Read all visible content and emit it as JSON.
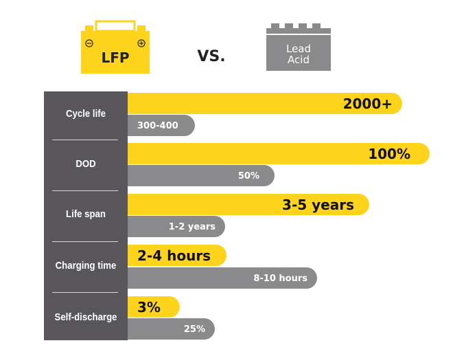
{
  "header": {
    "lfp_label": "LFP",
    "vs": "VS.",
    "lead_acid_label": [
      "Lead",
      "Acid"
    ]
  },
  "rows": [
    {
      "label": "Cycle life",
      "lfp": "2000+",
      "lead_acid": "300-400"
    },
    {
      "label": "DOD",
      "lfp": "100%",
      "lead_acid": "50%"
    },
    {
      "label": "Life span",
      "lfp": "3-5 years",
      "lead_acid": "1-2 years"
    },
    {
      "label": "Charging time",
      "lfp": "2-4 hours",
      "lead_acid": "8-10 hours"
    },
    {
      "label": "Self-discharge",
      "lfp": "3%",
      "lead_acid": "25%"
    }
  ]
}
